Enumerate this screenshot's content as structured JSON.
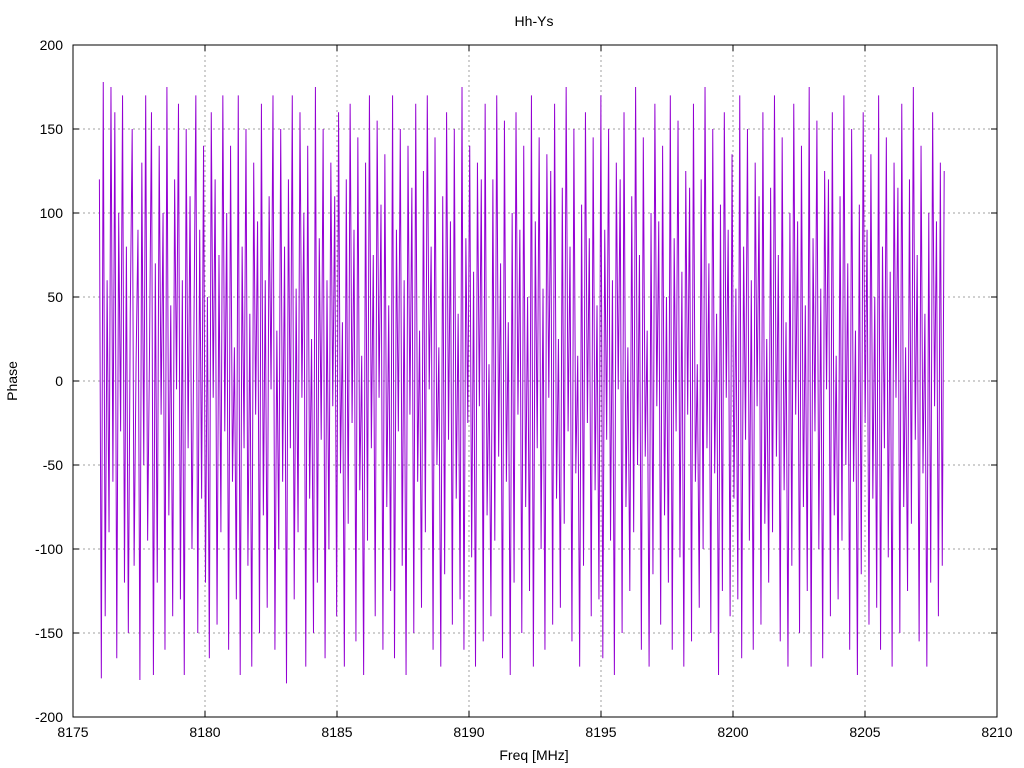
{
  "chart_data": {
    "type": "line",
    "title": "Hh-Ys",
    "xlabel": "Freq [MHz]",
    "ylabel": "Phase",
    "xlim": [
      8175,
      8210
    ],
    "ylim": [
      -200,
      200
    ],
    "x_ticks": [
      8175,
      8180,
      8185,
      8190,
      8195,
      8200,
      8205,
      8210
    ],
    "y_ticks": [
      -200,
      -150,
      -100,
      -50,
      0,
      50,
      100,
      150,
      200
    ],
    "grid": true,
    "grid_style": "dotted",
    "legend": "none",
    "series": [
      {
        "color": "#9400d3",
        "x_start": 8176.0,
        "x_end": 8208.0,
        "values": [
          120,
          -177,
          178,
          -140,
          60,
          -90,
          175,
          -60,
          160,
          -165,
          100,
          -30,
          170,
          -120,
          80,
          -150,
          40,
          150,
          -110,
          10,
          90,
          -178,
          130,
          -50,
          170,
          -95,
          20,
          160,
          -175,
          70,
          -120,
          140,
          -20,
          100,
          -160,
          175,
          -80,
          45,
          -140,
          120,
          -5,
          165,
          -130,
          60,
          -175,
          150,
          -40,
          110,
          -100,
          30,
          170,
          -150,
          90,
          -70,
          140,
          -120,
          50,
          -165,
          160,
          -10,
          120,
          -145,
          75,
          -90,
          170,
          -30,
          100,
          -160,
          140,
          -60,
          20,
          -130,
          170,
          -175,
          80,
          -40,
          150,
          -110,
          40,
          -170,
          130,
          -20,
          95,
          -150,
          165,
          -80,
          60,
          -135,
          110,
          -5,
          170,
          -160,
          30,
          -100,
          150,
          -60,
          80,
          -180,
          120,
          -40,
          170,
          -130,
          55,
          -90,
          160,
          -10,
          100,
          -170,
          140,
          -70,
          25,
          -150,
          175,
          -120,
          85,
          -35,
          150,
          -165,
          60,
          -100,
          130,
          -15,
          110,
          -140,
          160,
          -55,
          35,
          -170,
          120,
          -85,
          165,
          -25,
          90,
          -155,
          145,
          -65,
          15,
          -175,
          130,
          -95,
          170,
          -40,
          75,
          -140,
          155,
          -10,
          105,
          -160,
          135,
          -75,
          45,
          -125,
          170,
          -165,
          90,
          -30,
          150,
          -110,
          60,
          -175,
          140,
          -20,
          115,
          -150,
          165,
          -60,
          30,
          -135,
          125,
          -90,
          170,
          -5,
          80,
          -160,
          145,
          -50,
          20,
          -170,
          110,
          -115,
          160,
          -35,
          95,
          -145,
          150,
          -70,
          40,
          -130,
          175,
          -160,
          85,
          -25,
          140,
          -105,
          65,
          -170,
          130,
          -15,
          120,
          -155,
          165,
          -80,
          10,
          -140,
          120,
          -95,
          170,
          -45,
          70,
          -165,
          155,
          -60,
          35,
          -175,
          100,
          -120,
          160,
          -20,
          90,
          -150,
          140,
          -75,
          50,
          -125,
          170,
          -170,
          95,
          -40,
          145,
          -100,
          55,
          -160,
          135,
          -10,
          125,
          -145,
          165,
          -70,
          25,
          -135,
          115,
          -85,
          175,
          -30,
          80,
          -155,
          150,
          -55,
          15,
          -170,
          105,
          -110,
          160,
          -25,
          85,
          -140,
          145,
          -65,
          45,
          -130,
          170,
          -165,
          90,
          -35,
          150,
          -95,
          60,
          -175,
          130,
          -5,
          120,
          -150,
          160,
          -75,
          20,
          -125,
          110,
          -90,
          175,
          -50,
          75,
          -160,
          145,
          -45,
          30,
          -170,
          100,
          -115,
          165,
          -15,
          95,
          -145,
          140,
          -80,
          50,
          -120,
          170,
          -160,
          85,
          -30,
          155,
          -105,
          65,
          -170,
          125,
          -20,
          115,
          -155,
          165,
          -60,
          10,
          -135,
          120,
          -100,
          175,
          -40,
          70,
          -150,
          150,
          -55,
          40,
          -175,
          105,
          -125,
          160,
          -10,
          90,
          -140,
          135,
          -70,
          55,
          -130,
          170,
          -165,
          80,
          -35,
          150,
          -95,
          60,
          -160,
          130,
          -15,
          110,
          -145,
          160,
          -85,
          25,
          -120,
          115,
          -90,
          170,
          -45,
          75,
          -155,
          145,
          -65,
          35,
          -170,
          100,
          -110,
          165,
          -20,
          95,
          -150,
          140,
          -75,
          45,
          -125,
          175,
          -170,
          85,
          -30,
          155,
          -100,
          55,
          -165,
          125,
          -5,
          120,
          -140,
          160,
          -80,
          15,
          -130,
          110,
          -95,
          170,
          -50,
          70,
          -160,
          150,
          -60,
          30,
          -175,
          105,
          -115,
          160,
          -25,
          90,
          -145,
          135,
          -70,
          50,
          -135,
          170,
          -160,
          80,
          -40,
          145,
          -105,
          65,
          -170,
          130,
          -10,
          115,
          -150,
          165,
          -75,
          20,
          -125,
          120,
          -85,
          175,
          -35,
          75,
          -155,
          140,
          -55,
          40,
          -170,
          100,
          -120,
          160,
          -15,
          95,
          -140,
          130,
          -110,
          125
        ]
      }
    ]
  }
}
